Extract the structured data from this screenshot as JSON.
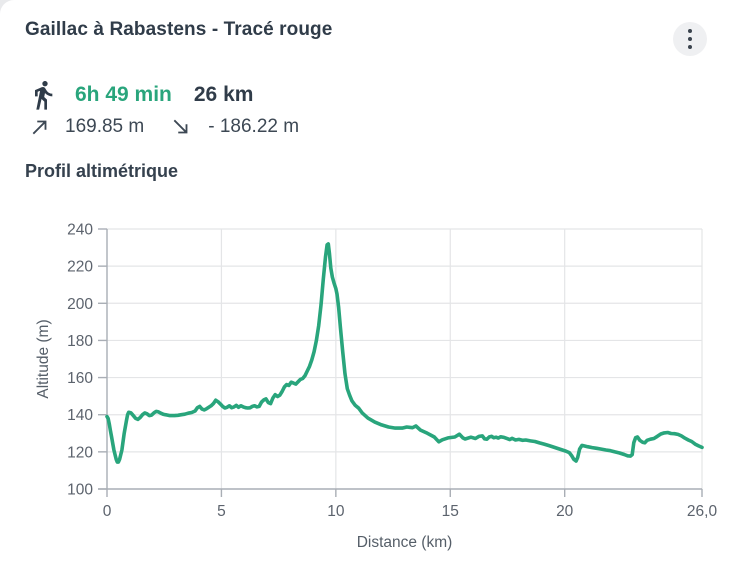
{
  "header": {
    "title": "Gaillac à Rabastens - Tracé rouge",
    "menu_icon": "kebab-menu"
  },
  "stats": {
    "activity_icon": "walking-person",
    "duration": "6h 49 min",
    "distance": "26 km",
    "ascent_icon": "arrow-up-right",
    "ascent": "169.85 m",
    "descent_icon": "arrow-down-right",
    "descent": "- 186.22 m"
  },
  "section": {
    "title": "Profil altimétrique"
  },
  "colors": {
    "accent_green": "#29a57c",
    "dark_text": "#303c49",
    "secondary_text": "#3d4854",
    "tick_text": "#5c636d",
    "axis_title_text": "#555e68",
    "grid": "#e4e5e7",
    "axis_line": "#a9aeb5",
    "menu_circle": "#eff0f2"
  },
  "chart_data": {
    "type": "line",
    "title": "Profil altimétrique",
    "xlabel": "Distance (km)",
    "ylabel": "Altitude (m)",
    "xlim": [
      0,
      26
    ],
    "ylim": [
      100,
      240
    ],
    "x_ticks": [
      0,
      5,
      10,
      15,
      20,
      26
    ],
    "x_tick_labels": [
      "0",
      "5",
      "10",
      "15",
      "20",
      "26,0"
    ],
    "y_ticks": [
      100,
      120,
      140,
      160,
      180,
      200,
      220,
      240
    ],
    "grid": true,
    "legend": "none",
    "line_color": "#29a57c",
    "line_width": 3.6,
    "points": [
      [
        0,
        139
      ],
      [
        0.05,
        138
      ],
      [
        0.1,
        135
      ],
      [
        0.15,
        131.5
      ],
      [
        0.2,
        128
      ],
      [
        0.3,
        121
      ],
      [
        0.4,
        116
      ],
      [
        0.45,
        114.5
      ],
      [
        0.5,
        114.5
      ],
      [
        0.55,
        116
      ],
      [
        0.65,
        121
      ],
      [
        0.75,
        130
      ],
      [
        0.85,
        137
      ],
      [
        0.9,
        140
      ],
      [
        0.95,
        141.3
      ],
      [
        1.05,
        141
      ],
      [
        1.15,
        139.5
      ],
      [
        1.25,
        138
      ],
      [
        1.35,
        137.5
      ],
      [
        1.45,
        138.5
      ],
      [
        1.55,
        140
      ],
      [
        1.65,
        141
      ],
      [
        1.75,
        140.5
      ],
      [
        1.85,
        139.5
      ],
      [
        1.95,
        139.8
      ],
      [
        2.05,
        141
      ],
      [
        2.15,
        141.8
      ],
      [
        2.25,
        141.5
      ],
      [
        2.35,
        140.8
      ],
      [
        2.45,
        140.3
      ],
      [
        2.55,
        140
      ],
      [
        2.65,
        139.8
      ],
      [
        2.75,
        139.5
      ],
      [
        2.85,
        139.6
      ],
      [
        2.95,
        139.5
      ],
      [
        3.1,
        139.7
      ],
      [
        3.25,
        140
      ],
      [
        3.4,
        140.3
      ],
      [
        3.55,
        140.8
      ],
      [
        3.7,
        141.2
      ],
      [
        3.85,
        142
      ],
      [
        3.95,
        143.8
      ],
      [
        4.05,
        144.5
      ],
      [
        4.15,
        143
      ],
      [
        4.25,
        142.6
      ],
      [
        4.35,
        143.2
      ],
      [
        4.45,
        144
      ],
      [
        4.55,
        144.8
      ],
      [
        4.65,
        146
      ],
      [
        4.75,
        147.8
      ],
      [
        4.85,
        147
      ],
      [
        4.95,
        145.8
      ],
      [
        5.05,
        144.5
      ],
      [
        5.15,
        143.6
      ],
      [
        5.25,
        144
      ],
      [
        5.35,
        144.8
      ],
      [
        5.45,
        143.8
      ],
      [
        5.55,
        144.2
      ],
      [
        5.65,
        145
      ],
      [
        5.75,
        144
      ],
      [
        5.85,
        144.8
      ],
      [
        5.95,
        144.2
      ],
      [
        6.05,
        143.8
      ],
      [
        6.15,
        143.6
      ],
      [
        6.25,
        143.7
      ],
      [
        6.35,
        144.5
      ],
      [
        6.45,
        144.8
      ],
      [
        6.55,
        144.2
      ],
      [
        6.65,
        144.5
      ],
      [
        6.75,
        146.8
      ],
      [
        6.85,
        148
      ],
      [
        6.95,
        148.5
      ],
      [
        7.05,
        146.5
      ],
      [
        7.15,
        146
      ],
      [
        7.25,
        149
      ],
      [
        7.35,
        150.8
      ],
      [
        7.45,
        149.8
      ],
      [
        7.55,
        150.5
      ],
      [
        7.65,
        152.5
      ],
      [
        7.75,
        155
      ],
      [
        7.85,
        156.2
      ],
      [
        7.95,
        155.8
      ],
      [
        8.05,
        157.5
      ],
      [
        8.15,
        157
      ],
      [
        8.25,
        156.5
      ],
      [
        8.35,
        157.8
      ],
      [
        8.45,
        159
      ],
      [
        8.55,
        159.5
      ],
      [
        8.65,
        161
      ],
      [
        8.75,
        163.5
      ],
      [
        8.85,
        166
      ],
      [
        8.95,
        169.5
      ],
      [
        9.05,
        174
      ],
      [
        9.15,
        180
      ],
      [
        9.25,
        188
      ],
      [
        9.35,
        199
      ],
      [
        9.45,
        213
      ],
      [
        9.55,
        225
      ],
      [
        9.62,
        231.5
      ],
      [
        9.67,
        232
      ],
      [
        9.72,
        227
      ],
      [
        9.78,
        219
      ],
      [
        9.85,
        214
      ],
      [
        9.92,
        211
      ],
      [
        10,
        208
      ],
      [
        10.05,
        205
      ],
      [
        10.12,
        198
      ],
      [
        10.2,
        187
      ],
      [
        10.3,
        174
      ],
      [
        10.4,
        162
      ],
      [
        10.5,
        154
      ],
      [
        10.6,
        150.5
      ],
      [
        10.7,
        147.5
      ],
      [
        10.85,
        145
      ],
      [
        11,
        143.5
      ],
      [
        11.15,
        141
      ],
      [
        11.4,
        138.2
      ],
      [
        11.7,
        136
      ],
      [
        12,
        134.5
      ],
      [
        12.3,
        133.4
      ],
      [
        12.6,
        132.8
      ],
      [
        12.9,
        132.8
      ],
      [
        13.1,
        133.4
      ],
      [
        13.35,
        133
      ],
      [
        13.5,
        133.9
      ],
      [
        13.7,
        131.7
      ],
      [
        14,
        130
      ],
      [
        14.15,
        129
      ],
      [
        14.3,
        128
      ],
      [
        14.5,
        125.4
      ],
      [
        14.65,
        126.5
      ],
      [
        14.9,
        127.5
      ],
      [
        15.2,
        128
      ],
      [
        15.4,
        129.5
      ],
      [
        15.55,
        127.5
      ],
      [
        15.65,
        126.9
      ],
      [
        15.9,
        127.9
      ],
      [
        16.1,
        127.2
      ],
      [
        16.25,
        128.3
      ],
      [
        16.4,
        128.6
      ],
      [
        16.5,
        127
      ],
      [
        16.6,
        126.8
      ],
      [
        16.7,
        128
      ],
      [
        16.8,
        128.4
      ],
      [
        16.9,
        127.6
      ],
      [
        17,
        127.9
      ],
      [
        17.1,
        127.4
      ],
      [
        17.2,
        128.1
      ],
      [
        17.35,
        127.8
      ],
      [
        17.5,
        127.1
      ],
      [
        17.6,
        126.6
      ],
      [
        17.7,
        127.3
      ],
      [
        17.85,
        126.4
      ],
      [
        18,
        126.7
      ],
      [
        18.15,
        126.2
      ],
      [
        18.3,
        126.4
      ],
      [
        18.5,
        125.9
      ],
      [
        18.7,
        125.6
      ],
      [
        18.9,
        124.8
      ],
      [
        19.1,
        124.2
      ],
      [
        19.3,
        123.4
      ],
      [
        19.5,
        122.6
      ],
      [
        19.7,
        121.8
      ],
      [
        19.9,
        121
      ],
      [
        20.05,
        120.4
      ],
      [
        20.2,
        119.6
      ],
      [
        20.3,
        118
      ],
      [
        20.4,
        116
      ],
      [
        20.5,
        115.1
      ],
      [
        20.57,
        117
      ],
      [
        20.65,
        121.5
      ],
      [
        20.75,
        123.5
      ],
      [
        20.85,
        123.2
      ],
      [
        21,
        122.8
      ],
      [
        21.2,
        122.3
      ],
      [
        21.4,
        121.9
      ],
      [
        21.6,
        121.5
      ],
      [
        21.8,
        121
      ],
      [
        22,
        120.6
      ],
      [
        22.2,
        120
      ],
      [
        22.4,
        119.4
      ],
      [
        22.6,
        118.6
      ],
      [
        22.75,
        117.9
      ],
      [
        22.87,
        117.7
      ],
      [
        22.95,
        118.5
      ],
      [
        23.02,
        125
      ],
      [
        23.1,
        127.6
      ],
      [
        23.18,
        128
      ],
      [
        23.28,
        126.2
      ],
      [
        23.4,
        125.2
      ],
      [
        23.5,
        124.9
      ],
      [
        23.6,
        126.2
      ],
      [
        23.75,
        126.8
      ],
      [
        23.9,
        127.2
      ],
      [
        24.05,
        128.4
      ],
      [
        24.2,
        129.6
      ],
      [
        24.35,
        130.2
      ],
      [
        24.5,
        130.4
      ],
      [
        24.65,
        129.9
      ],
      [
        24.8,
        129.8
      ],
      [
        24.95,
        129.4
      ],
      [
        25.1,
        128.6
      ],
      [
        25.25,
        127.4
      ],
      [
        25.4,
        126.4
      ],
      [
        25.55,
        125.6
      ],
      [
        25.7,
        124.2
      ],
      [
        25.85,
        123.2
      ],
      [
        26,
        122.4
      ]
    ]
  }
}
